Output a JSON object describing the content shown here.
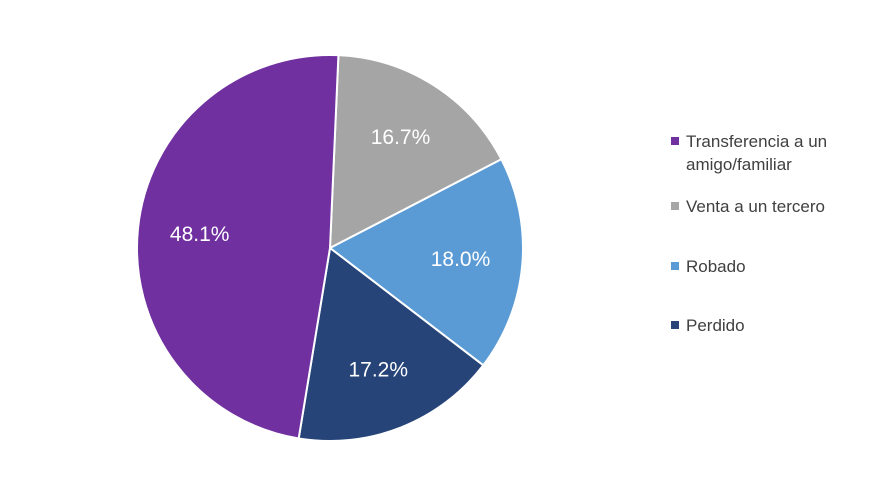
{
  "chart_data": {
    "type": "pie",
    "title": "",
    "slices": [
      {
        "label": "Transferencia a un amigo/familiar",
        "value": 48.1,
        "value_label": "48.1%",
        "color": "#7030A0"
      },
      {
        "label": "Venta a un tercero",
        "value": 16.7,
        "value_label": "16.7%",
        "color": "#A5A5A5"
      },
      {
        "label": "Robado",
        "value": 18.0,
        "value_label": "18.0%",
        "color": "#5B9BD5"
      },
      {
        "label": "Perdido",
        "value": 17.2,
        "value_label": "17.2%",
        "color": "#264478"
      }
    ],
    "legend_position": "right",
    "start_angle_note": "slices run clockwise from 12 o'clock in order: Venta a un tercero, Robado, Perdido, Transferencia a un amigo/familiar"
  }
}
